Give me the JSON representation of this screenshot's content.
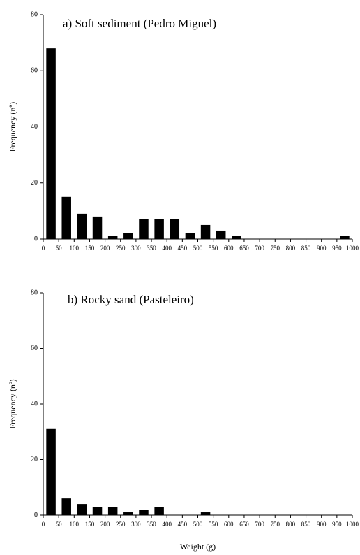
{
  "chart_data": [
    {
      "type": "bar",
      "title": "a) Soft sediment (Pedro Miguel)",
      "xlabel": "",
      "ylabel": "Frequency (nº)",
      "ylim": [
        0,
        80
      ],
      "yticks": [
        0,
        20,
        40,
        60,
        80
      ],
      "xlim": [
        0,
        1000
      ],
      "xticks": [
        0,
        50,
        100,
        150,
        200,
        250,
        300,
        350,
        400,
        450,
        500,
        550,
        600,
        650,
        700,
        750,
        800,
        850,
        900,
        950,
        1000
      ],
      "bins_lower": [
        0,
        50,
        100,
        150,
        200,
        250,
        300,
        350,
        400,
        450,
        500,
        550,
        600,
        950
      ],
      "values": [
        68,
        15,
        9,
        8,
        1,
        2,
        7,
        7,
        7,
        2,
        5,
        3,
        1,
        1
      ]
    },
    {
      "type": "bar",
      "title": "b) Rocky sand (Pasteleiro)",
      "xlabel": "Weight (g)",
      "ylabel": "Frequency (nº)",
      "ylim": [
        0,
        80
      ],
      "yticks": [
        0,
        20,
        40,
        60,
        80
      ],
      "xlim": [
        0,
        1000
      ],
      "xticks": [
        0,
        50,
        100,
        150,
        200,
        250,
        300,
        350,
        400,
        450,
        500,
        550,
        600,
        650,
        700,
        750,
        800,
        850,
        900,
        950,
        1000
      ],
      "bins_lower": [
        0,
        50,
        100,
        150,
        200,
        250,
        300,
        350,
        500
      ],
      "values": [
        31,
        6,
        4,
        3,
        3,
        1,
        2,
        3,
        1
      ]
    }
  ]
}
